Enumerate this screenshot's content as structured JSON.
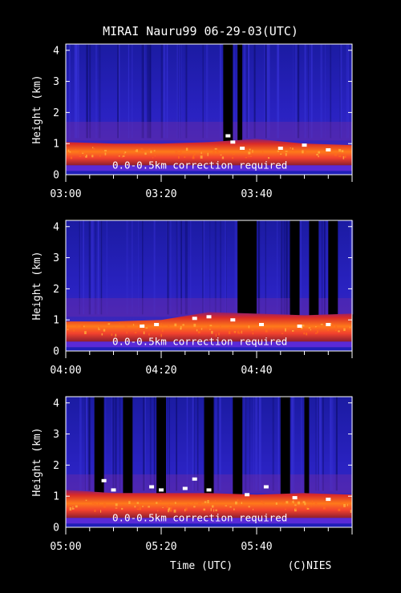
{
  "title": "MIRAI Nauru99 06-29-03(UTC)",
  "footer": {
    "xlabel": "Time (UTC)",
    "credit": "(C)NIES"
  },
  "colors": {
    "background": "#000000",
    "text": "#ffffff",
    "low_backscatter": "#1c1ca8",
    "boundary_layer": "#ff4a18",
    "cloud": "#ffffff",
    "missing_data": "#000000"
  },
  "chart_data": [
    {
      "type": "heatmap",
      "panel": "03:00-04:00",
      "ylabel": "Height (km)",
      "ylim": [
        0,
        4.2
      ],
      "yticks": [
        0,
        1,
        2,
        3,
        4
      ],
      "x_start": "03:00",
      "x_end": "04:00",
      "x_tick_labels": [
        "03:00",
        "03:20",
        "03:40"
      ],
      "annotation": "0.0-0.5km correction required",
      "boundary_layer_top_km": [
        {
          "time": "03:00",
          "height": 1.05
        },
        {
          "time": "03:10",
          "height": 1.0
        },
        {
          "time": "03:20",
          "height": 1.0
        },
        {
          "time": "03:30",
          "height": 1.05
        },
        {
          "time": "03:40",
          "height": 1.15
        },
        {
          "time": "03:50",
          "height": 1.0
        },
        {
          "time": "04:00",
          "height": 0.95
        }
      ],
      "cloud_echo_km": [
        {
          "time": "03:34",
          "height": 1.25
        },
        {
          "time": "03:35",
          "height": 1.05
        },
        {
          "time": "03:37",
          "height": 0.85
        },
        {
          "time": "03:45",
          "height": 0.85
        },
        {
          "time": "03:50",
          "height": 0.95
        },
        {
          "time": "03:55",
          "height": 0.8
        }
      ],
      "missing_data_intervals": [
        [
          "03:33",
          "03:35"
        ],
        [
          "03:36",
          "03:37"
        ]
      ]
    },
    {
      "type": "heatmap",
      "panel": "04:00-05:00",
      "ylabel": "Height (km)",
      "ylim": [
        0,
        4.2
      ],
      "yticks": [
        0,
        1,
        2,
        3,
        4
      ],
      "x_start": "04:00",
      "x_end": "05:00",
      "x_tick_labels": [
        "04:00",
        "04:20",
        "04:40"
      ],
      "annotation": "0.0-0.5km correction required",
      "boundary_layer_top_km": [
        {
          "time": "04:00",
          "height": 0.95
        },
        {
          "time": "04:10",
          "height": 0.95
        },
        {
          "time": "04:20",
          "height": 1.0
        },
        {
          "time": "04:30",
          "height": 1.25
        },
        {
          "time": "04:40",
          "height": 1.2
        },
        {
          "time": "04:50",
          "height": 1.15
        },
        {
          "time": "05:00",
          "height": 1.2
        }
      ],
      "cloud_echo_km": [
        {
          "time": "04:16",
          "height": 0.8
        },
        {
          "time": "04:19",
          "height": 0.85
        },
        {
          "time": "04:27",
          "height": 1.05
        },
        {
          "time": "04:30",
          "height": 1.1
        },
        {
          "time": "04:35",
          "height": 1.0
        },
        {
          "time": "04:41",
          "height": 0.85
        },
        {
          "time": "04:49",
          "height": 0.8
        },
        {
          "time": "04:55",
          "height": 0.85
        }
      ],
      "missing_data_intervals": [
        [
          "04:36",
          "04:40"
        ],
        [
          "04:47",
          "04:49"
        ],
        [
          "04:51",
          "04:53"
        ],
        [
          "04:55",
          "04:57"
        ]
      ]
    },
    {
      "type": "heatmap",
      "panel": "05:00-06:00",
      "ylabel": "Height (km)",
      "ylim": [
        0,
        4.2
      ],
      "yticks": [
        0,
        1,
        2,
        3,
        4
      ],
      "x_start": "05:00",
      "x_end": "06:00",
      "x_tick_labels": [
        "05:00",
        "05:20",
        "05:40"
      ],
      "annotation": "0.0-0.5km correction required",
      "boundary_layer_top_km": [
        {
          "time": "05:00",
          "height": 1.2
        },
        {
          "time": "05:10",
          "height": 1.1
        },
        {
          "time": "05:20",
          "height": 1.1
        },
        {
          "time": "05:30",
          "height": 1.1
        },
        {
          "time": "05:40",
          "height": 1.05
        },
        {
          "time": "05:50",
          "height": 1.1
        },
        {
          "time": "06:00",
          "height": 1.05
        }
      ],
      "cloud_echo_km": [
        {
          "time": "05:08",
          "height": 1.5
        },
        {
          "time": "05:10",
          "height": 1.2
        },
        {
          "time": "05:18",
          "height": 1.3
        },
        {
          "time": "05:20",
          "height": 1.2
        },
        {
          "time": "05:25",
          "height": 1.25
        },
        {
          "time": "05:27",
          "height": 1.55
        },
        {
          "time": "05:30",
          "height": 1.2
        },
        {
          "time": "05:38",
          "height": 1.05
        },
        {
          "time": "05:42",
          "height": 1.3
        },
        {
          "time": "05:48",
          "height": 0.95
        },
        {
          "time": "05:55",
          "height": 0.9
        }
      ],
      "missing_data_intervals": [
        [
          "05:06",
          "05:08"
        ],
        [
          "05:12",
          "05:14"
        ],
        [
          "05:19",
          "05:21"
        ],
        [
          "05:29",
          "05:31"
        ],
        [
          "05:35",
          "05:37"
        ],
        [
          "05:45",
          "05:47"
        ],
        [
          "05:50",
          "05:51"
        ]
      ]
    }
  ]
}
